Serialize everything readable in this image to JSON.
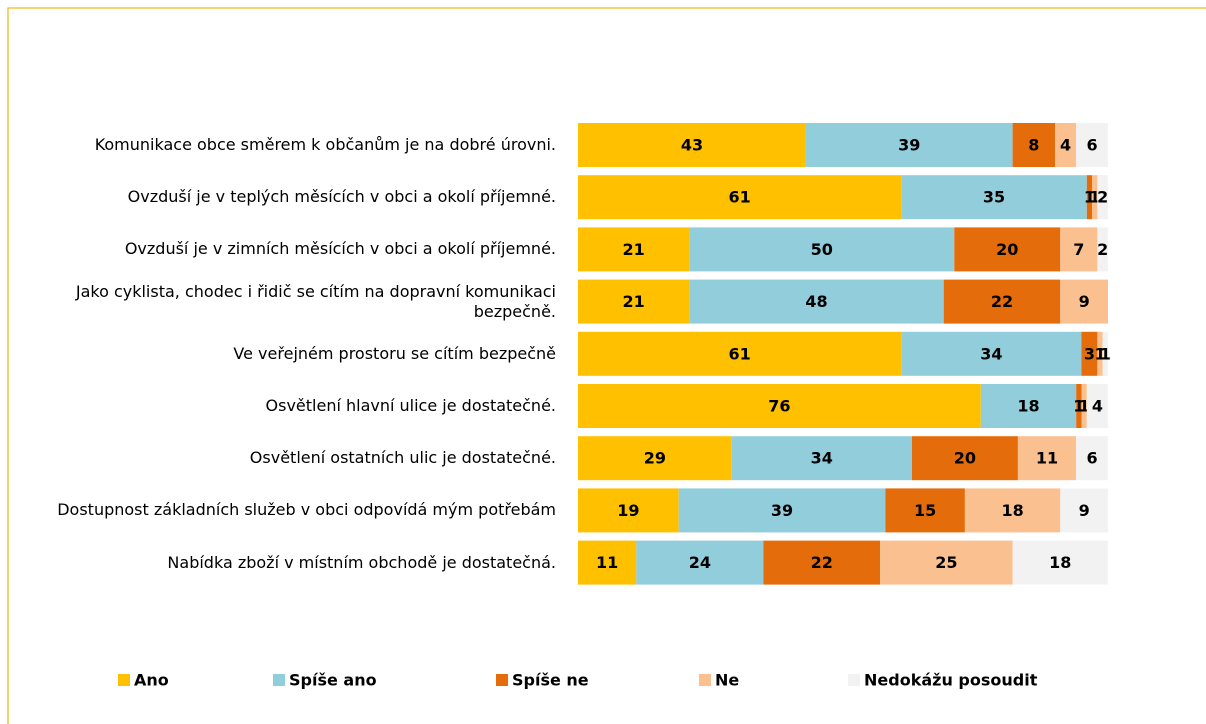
{
  "chart_data": {
    "type": "stacked-bar-horizontal",
    "categories": [
      "Komunikace obce směrem k občanům je na dobré úrovni.",
      "Ovzduší je v teplých měsících v obci a okolí příjemné.",
      "Ovzduší je v zimních měsících v obci a okolí příjemné.",
      "Jako cyklista, chodec i řidič se cítím na dopravní komunikaci bezpečně.",
      "Ve veřejném prostoru se cítím bezpečně",
      "Osvětlení hlavní ulice je dostatečné.",
      "Osvětlení ostatních ulic je dostatečné.",
      "Dostupnost základních služeb v obci odpovídá mým potřebám",
      "Nabídka zboží v místním obchodě je dostatečná."
    ],
    "series": [
      {
        "name": "Ano",
        "color": "#FFC000",
        "values": [
          43,
          61,
          21,
          21,
          61,
          76,
          29,
          19,
          11
        ]
      },
      {
        "name": "Spíše ano",
        "color": "#92CDDC",
        "values": [
          39,
          35,
          50,
          48,
          34,
          18,
          34,
          39,
          24
        ]
      },
      {
        "name": "Spíše ne",
        "color": "#E46C0A",
        "values": [
          8,
          1,
          20,
          22,
          3,
          1,
          20,
          15,
          22
        ]
      },
      {
        "name": "Ne",
        "color": "#FAC090",
        "values": [
          4,
          1,
          7,
          9,
          1,
          1,
          11,
          18,
          25
        ]
      },
      {
        "name": "Nedokážu posoudit",
        "color": "#F2F2F2",
        "values": [
          6,
          2,
          2,
          0,
          1,
          4,
          6,
          9,
          18
        ]
      }
    ],
    "xlim": [
      0,
      100
    ],
    "legend": "bottom"
  }
}
